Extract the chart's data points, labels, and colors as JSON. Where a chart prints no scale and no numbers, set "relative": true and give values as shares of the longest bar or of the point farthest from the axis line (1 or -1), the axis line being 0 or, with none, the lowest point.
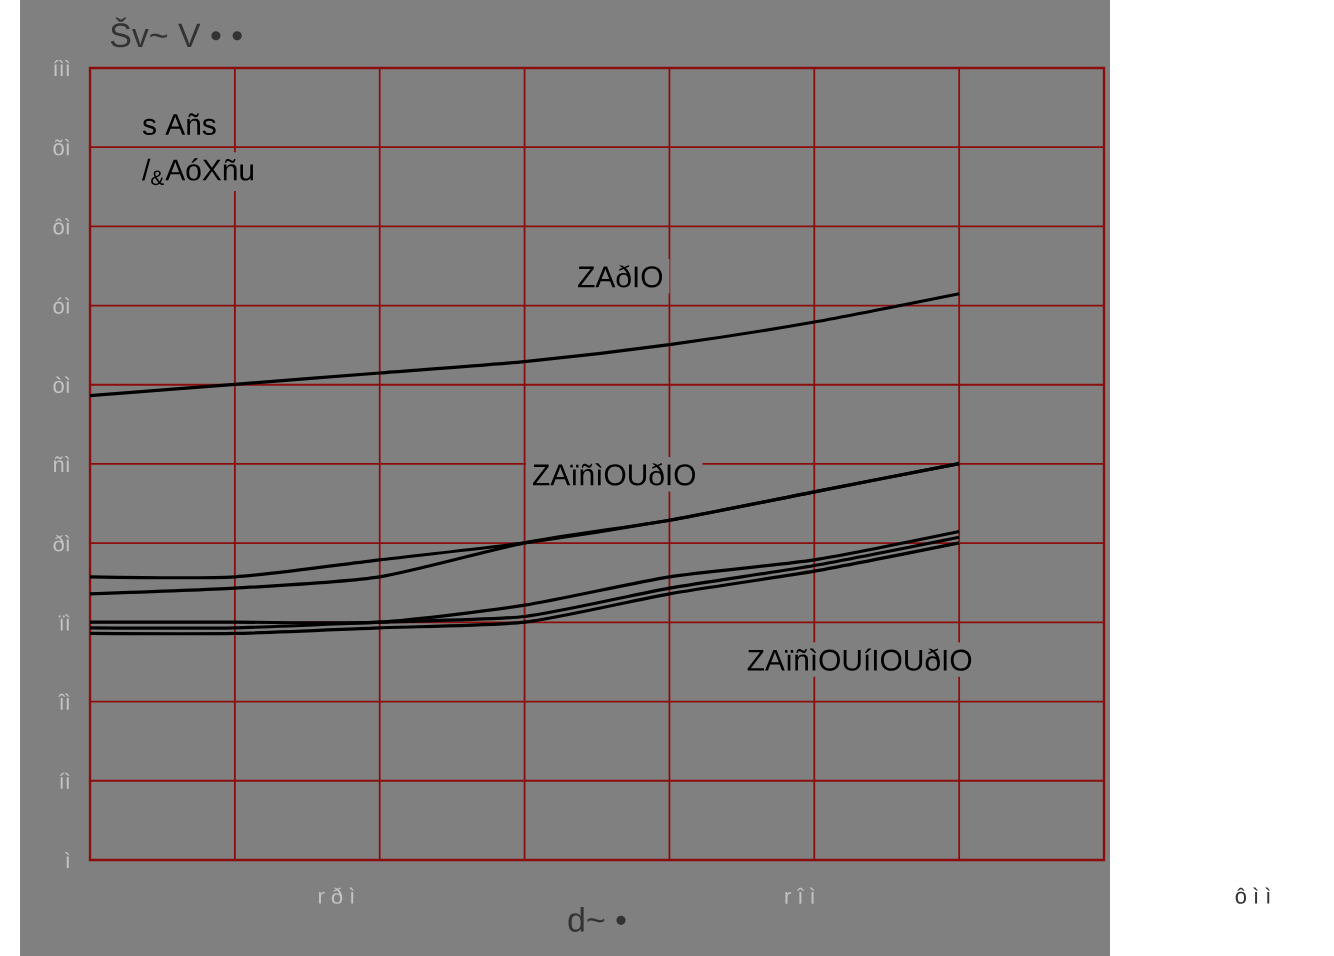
{
  "chart_data": {
    "type": "line",
    "xlabel": "d~ •",
    "relative": true,
    "categories": [
      null,
      null,
      null,
      null,
      null,
      null,
      null
    ],
    "grid": true,
    "marker": "none",
    "line_style": "solid",
    "series": [
      {
        "color": "#000000",
        "values": [
          0.82,
          0.84,
          0.86,
          0.88,
          0.91,
          0.95,
          1.0
        ]
      },
      {
        "color": "#000000",
        "values": [
          0.5,
          0.5,
          0.53,
          0.56,
          0.6,
          0.65,
          0.7
        ]
      },
      {
        "color": "#000000",
        "values": [
          0.47,
          0.48,
          0.5,
          0.56,
          0.6,
          0.65,
          0.7
        ]
      },
      {
        "color": "#000000",
        "values": [
          0.42,
          0.42,
          0.42,
          0.45,
          0.5,
          0.53,
          0.58
        ]
      },
      {
        "color": "#000000",
        "values": [
          0.41,
          0.41,
          0.42,
          0.43,
          0.48,
          0.52,
          0.57
        ]
      },
      {
        "color": "#000000",
        "values": [
          0.4,
          0.4,
          0.41,
          0.42,
          0.47,
          0.51,
          0.56
        ]
      }
    ],
    "annotations": [
      "ZAðIO",
      "ZAïñìOUðIO",
      "ZAïñìOUíIOUðIO",
      "s Añs",
      "/$_{&}$AóXñu",
      "ì",
      "íì",
      "îì",
      "ïì",
      "ðì",
      "ñì",
      "òì",
      "óì",
      "ôì",
      "õì",
      "íìì",
      "r ð ì",
      "r î ì",
      "ô ì ì",
      "Šv~ V • •"
    ]
  }
}
